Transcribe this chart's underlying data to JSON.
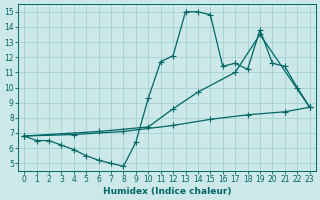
{
  "xlabel": "Humidex (Indice chaleur)",
  "bg_color": "#cce8e8",
  "grid_color": "#aad4d4",
  "line_color": "#006666",
  "xlim": [
    -0.5,
    23.5
  ],
  "ylim": [
    4.5,
    15.5
  ],
  "xticks": [
    0,
    1,
    2,
    3,
    4,
    5,
    6,
    7,
    8,
    9,
    10,
    11,
    12,
    13,
    14,
    15,
    16,
    17,
    18,
    19,
    20,
    21,
    22,
    23
  ],
  "yticks": [
    5,
    6,
    7,
    8,
    9,
    10,
    11,
    12,
    13,
    14,
    15
  ],
  "line1_x": [
    0,
    1,
    2,
    3,
    4,
    5,
    6,
    7,
    8,
    9,
    10,
    11,
    12,
    13,
    14,
    15,
    16,
    17,
    18,
    19,
    20,
    21,
    22,
    23
  ],
  "line1_y": [
    6.8,
    6.5,
    6.5,
    6.2,
    5.9,
    5.5,
    5.2,
    5.0,
    4.8,
    6.4,
    9.3,
    11.7,
    12.1,
    15.0,
    15.0,
    14.8,
    11.4,
    11.6,
    11.2,
    13.8,
    11.6,
    11.4,
    10.0,
    8.7
  ],
  "line2_x": [
    0,
    6,
    10,
    12,
    14,
    17,
    19,
    23
  ],
  "line2_y": [
    6.8,
    7.1,
    7.4,
    8.6,
    9.7,
    11.0,
    13.5,
    8.7
  ],
  "line3_x": [
    0,
    4,
    8,
    12,
    15,
    18,
    21,
    23
  ],
  "line3_y": [
    6.8,
    6.9,
    7.1,
    7.5,
    7.9,
    8.2,
    8.4,
    8.7
  ]
}
